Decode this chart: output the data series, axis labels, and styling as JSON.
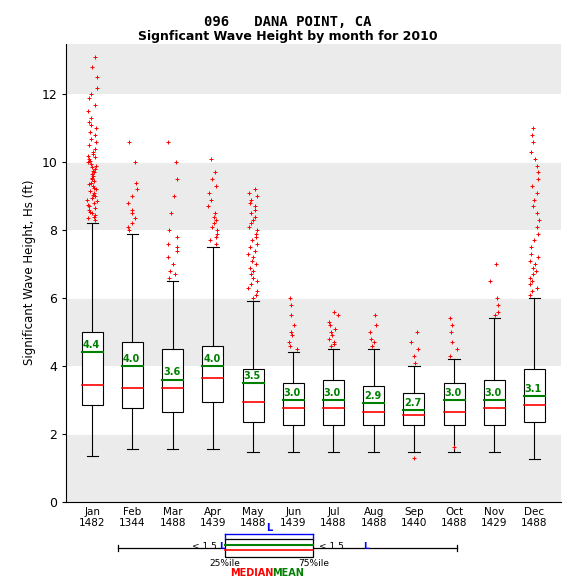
{
  "title1": "096   DANA POINT, CA",
  "title2": "Signficant Wave Height by month for 2010",
  "ylabel": "Significant Wave Height, Hs (ft)",
  "months": [
    "Jan",
    "Feb",
    "Mar",
    "Apr",
    "May",
    "Jun",
    "Jul",
    "Aug",
    "Sep",
    "Oct",
    "Nov",
    "Dec"
  ],
  "counts": [
    1482,
    1344,
    1488,
    1439,
    1488,
    1439,
    1488,
    1488,
    1440,
    1488,
    1429,
    1488
  ],
  "means": [
    4.4,
    4.0,
    3.6,
    4.0,
    3.5,
    3.0,
    3.0,
    2.9,
    2.7,
    3.0,
    3.0,
    3.1
  ],
  "medians": [
    3.45,
    3.35,
    3.35,
    3.65,
    2.95,
    2.75,
    2.75,
    2.65,
    2.55,
    2.65,
    2.75,
    2.85
  ],
  "q1": [
    2.85,
    2.75,
    2.65,
    2.95,
    2.35,
    2.25,
    2.25,
    2.25,
    2.25,
    2.25,
    2.25,
    2.35
  ],
  "q3": [
    5.0,
    4.7,
    4.5,
    4.6,
    3.9,
    3.5,
    3.6,
    3.4,
    3.2,
    3.5,
    3.6,
    3.9
  ],
  "whisker_low": [
    1.35,
    1.55,
    1.55,
    1.55,
    1.45,
    1.45,
    1.45,
    1.45,
    1.45,
    1.45,
    1.45,
    1.25
  ],
  "whisker_high": [
    8.2,
    7.9,
    6.5,
    7.5,
    5.9,
    4.4,
    4.5,
    4.5,
    4.0,
    4.2,
    5.4,
    6.0
  ],
  "outliers_high": {
    "Jan": [
      8.3,
      8.35,
      8.4,
      8.45,
      8.5,
      8.55,
      8.6,
      8.65,
      8.7,
      8.75,
      8.8,
      8.85,
      8.9,
      8.95,
      9.0,
      9.05,
      9.1,
      9.15,
      9.2,
      9.25,
      9.3,
      9.35,
      9.4,
      9.45,
      9.5,
      9.55,
      9.6,
      9.65,
      9.7,
      9.75,
      9.8,
      9.85,
      9.9,
      9.95,
      10.0,
      10.05,
      10.1,
      10.15,
      10.2,
      10.25,
      10.3,
      10.4,
      10.5,
      10.6,
      10.7,
      10.8,
      10.9,
      11.0,
      11.1,
      11.2,
      11.3,
      11.5,
      11.7,
      11.9,
      12.0,
      12.2,
      12.5,
      12.8,
      13.1
    ],
    "Feb": [
      8.0,
      8.1,
      8.2,
      8.35,
      8.5,
      8.6,
      8.8,
      9.0,
      9.2,
      9.4,
      10.0,
      10.6
    ],
    "Mar": [
      6.6,
      6.7,
      6.8,
      7.0,
      7.2,
      7.4,
      7.5,
      7.6,
      7.8,
      8.0,
      8.5,
      9.0,
      9.5,
      10.0,
      10.6
    ],
    "Apr": [
      7.6,
      7.7,
      7.8,
      7.9,
      8.0,
      8.1,
      8.2,
      8.3,
      8.4,
      8.5,
      8.7,
      8.9,
      9.1,
      9.3,
      9.5,
      9.7,
      10.1
    ],
    "May": [
      6.0,
      6.1,
      6.2,
      6.3,
      6.4,
      6.5,
      6.6,
      6.7,
      6.8,
      6.9,
      7.0,
      7.1,
      7.2,
      7.3,
      7.4,
      7.5,
      7.6,
      7.7,
      7.8,
      7.9,
      8.0,
      8.1,
      8.2,
      8.3,
      8.4,
      8.5,
      8.6,
      8.7,
      8.8,
      8.9,
      9.0,
      9.1,
      9.2
    ],
    "Jun": [
      4.5,
      4.6,
      4.7,
      4.9,
      5.0,
      5.2,
      5.5,
      5.8,
      6.0
    ],
    "Jul": [
      4.6,
      4.65,
      4.7,
      4.8,
      4.9,
      5.0,
      5.1,
      5.2,
      5.3,
      5.5,
      5.6
    ],
    "Aug": [
      4.6,
      4.7,
      4.8,
      5.0,
      5.2,
      5.5
    ],
    "Sep": [
      4.1,
      4.3,
      4.5,
      4.7,
      5.0
    ],
    "Oct": [
      4.3,
      4.5,
      4.7,
      5.0,
      5.2,
      5.4
    ],
    "Nov": [
      5.5,
      5.6,
      5.8,
      6.0,
      6.5,
      7.0
    ],
    "Dec": [
      6.1,
      6.2,
      6.3,
      6.4,
      6.5,
      6.6,
      6.7,
      6.8,
      6.9,
      7.0,
      7.1,
      7.2,
      7.3,
      7.5,
      7.7,
      7.9,
      8.1,
      8.3,
      8.5,
      8.7,
      8.9,
      9.1,
      9.3,
      9.5,
      9.7,
      9.9,
      10.1,
      10.3,
      10.6,
      10.8,
      11.0
    ]
  },
  "outliers_low": {
    "Sep": [
      1.3
    ],
    "Oct": [
      1.6
    ]
  },
  "ylim": [
    0,
    13.5
  ],
  "yticks": [
    0,
    2,
    4,
    6,
    8,
    10,
    12
  ],
  "box_color": "white",
  "median_color": "#ff0000",
  "mean_color": "#008000",
  "outlier_color": "#ff0000",
  "whisker_color": "black",
  "band_color": "#ebebeb",
  "band_ranges": [
    [
      0,
      2
    ],
    [
      4,
      6
    ],
    [
      8,
      10
    ],
    [
      12,
      14
    ]
  ]
}
